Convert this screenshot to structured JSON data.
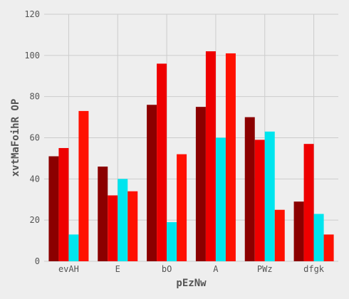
{
  "chart_data": {
    "type": "bar",
    "xlabel": "pEzNw",
    "ylabel": "xvtMaFoihR OP",
    "categories": [
      "evAH",
      "E",
      "bO",
      "A",
      "PWz",
      "dfgk"
    ],
    "ylim": [
      0,
      120
    ],
    "yticks": [
      0,
      20,
      40,
      60,
      80,
      100,
      120
    ],
    "grid": true,
    "legend": "none",
    "series": [
      {
        "color": "#8b0000",
        "values": [
          51,
          46,
          76,
          75,
          70,
          29
        ]
      },
      {
        "color": "#ee0000",
        "values": [
          55,
          32,
          96,
          102,
          59,
          57
        ]
      },
      {
        "color": "#00e5ee",
        "values": [
          13,
          40,
          19,
          60,
          63,
          23
        ]
      },
      {
        "color": "#ff1100",
        "values": [
          73,
          34,
          52,
          101,
          25,
          13
        ]
      }
    ]
  }
}
